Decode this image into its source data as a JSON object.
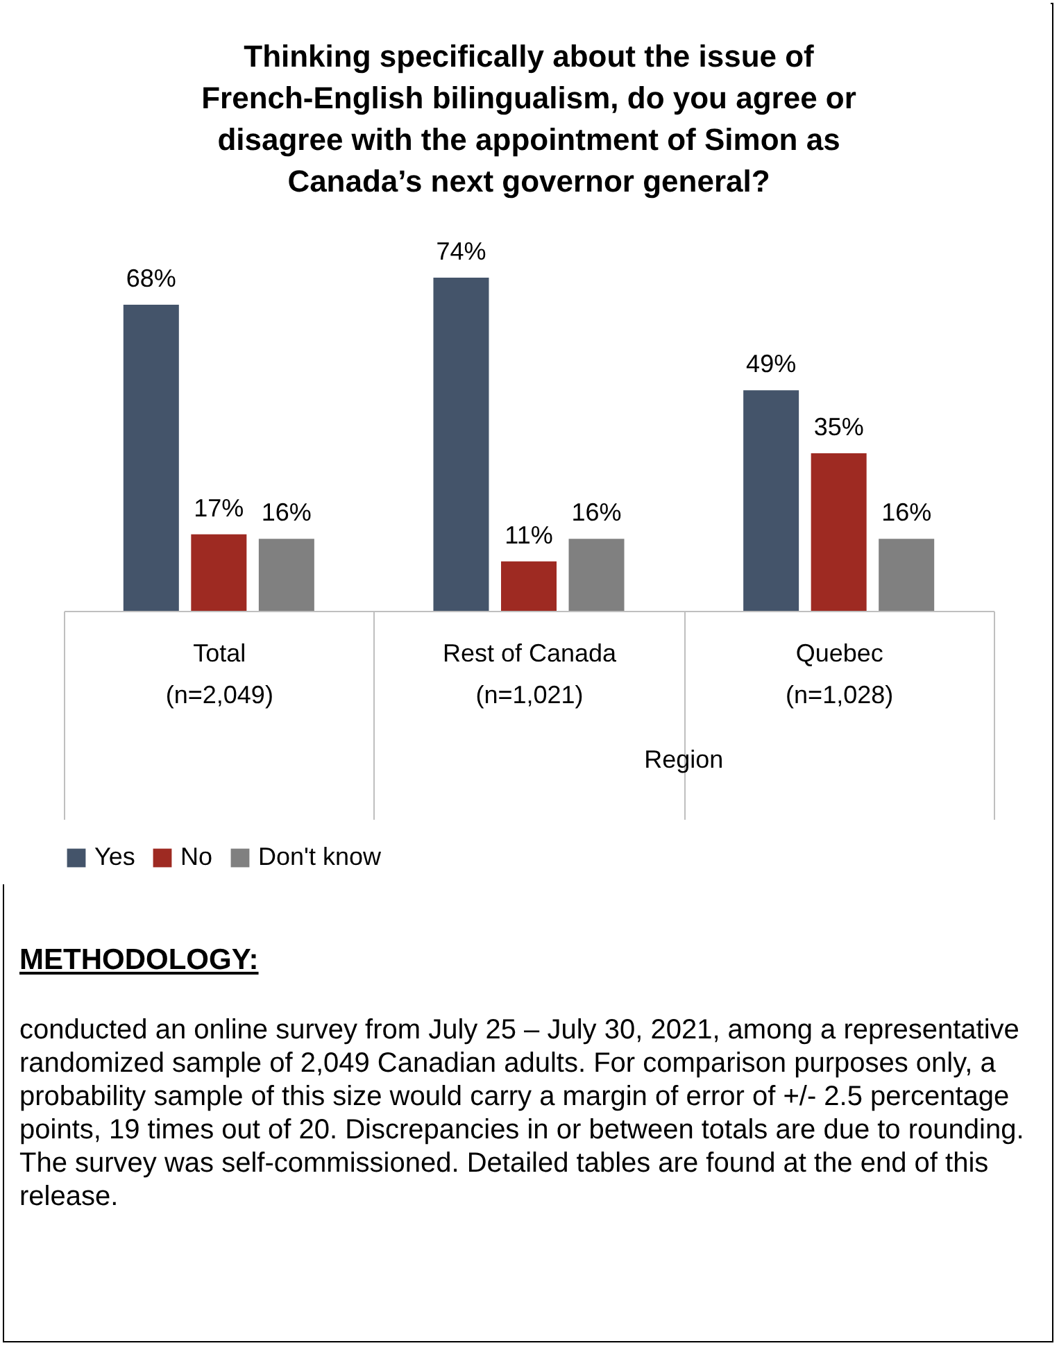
{
  "chart_data": {
    "type": "bar",
    "title": "Thinking specifically about the issue of French-English bilingualism, do you agree or disagree with the appointment of Simon as Canada’s next governor general?",
    "categories": [
      "Total\n(n=2,049)",
      "Rest of Canada\n(n=1,021)",
      "Quebec\n(n=1,028)"
    ],
    "series": [
      {
        "name": "Yes",
        "color": "#44546a",
        "values": [
          68,
          74,
          49
        ],
        "value_labels": [
          "68%",
          "74%",
          "49%"
        ]
      },
      {
        "name": "No",
        "color": "#9e2a22",
        "values": [
          17,
          11,
          35
        ],
        "value_labels": [
          "17%",
          "11%",
          "35%"
        ]
      },
      {
        "name": "Don't know",
        "color": "#808080",
        "values": [
          16,
          16,
          16
        ],
        "value_labels": [
          "16%",
          "16%",
          "16%"
        ]
      }
    ],
    "legend": "bottom",
    "annotations": [
      "Region",
      "METHODOLOGY:",
      "conducted an online survey from July 25 – July 30, 2021, among a representative randomized sample of 2,049 Canadian adults. For comparison purposes only, a probability sample of this size would carry a margin of error of +/- 2.5 percentage points, 19 times out of 20. Discrepancies in or between totals are due to rounding. The survey was self-commissioned. Detailed tables are found at the end of this release."
    ]
  }
}
